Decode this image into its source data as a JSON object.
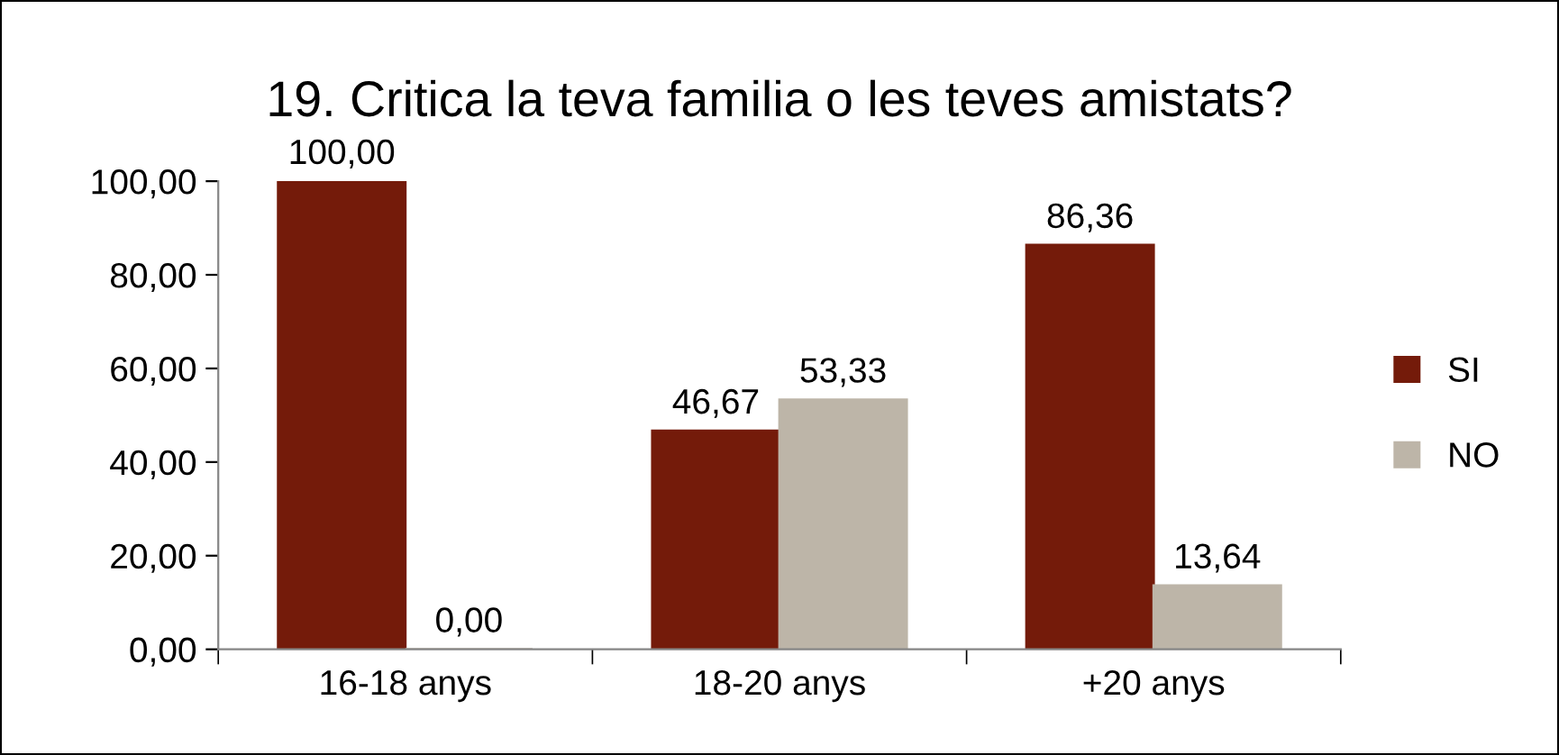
{
  "chart_data": {
    "type": "bar",
    "title": "19. Critica la teva familia o les teves amistats?",
    "categories": [
      "16-18 anys",
      "18-20 anys",
      "+20 anys"
    ],
    "series": [
      {
        "name": "SI",
        "color": "#741b0a",
        "values": [
          100.0,
          46.67,
          86.36
        ],
        "value_labels": [
          "100,00",
          "46,67",
          "86,36"
        ]
      },
      {
        "name": "NO",
        "color": "#bdb5a8",
        "values": [
          0.0,
          53.33,
          13.64
        ],
        "value_labels": [
          "0,00",
          "53,33",
          "13,64"
        ]
      }
    ],
    "ylim": [
      0,
      100
    ],
    "yticks": [
      {
        "value": 0,
        "label": "0,00"
      },
      {
        "value": 20,
        "label": "20,00"
      },
      {
        "value": 40,
        "label": "40,00"
      },
      {
        "value": 60,
        "label": "60,00"
      },
      {
        "value": 80,
        "label": "80,00"
      },
      {
        "value": 100,
        "label": "100,00"
      }
    ],
    "grid": false,
    "legend": "right"
  }
}
